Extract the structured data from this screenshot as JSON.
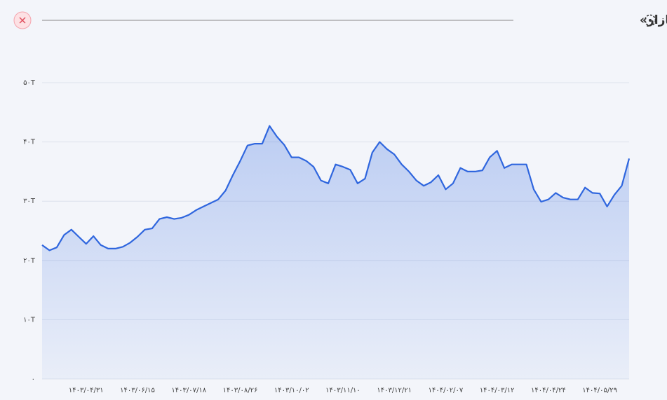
{
  "chart_data": {
    "type": "area",
    "title": "تاریخچه «ارزش بازار»",
    "categories": [
      null,
      null,
      null,
      null,
      null,
      null,
      "۱۴۰۳/۰۴/۳۱",
      null,
      null,
      null,
      null,
      null,
      null,
      "۱۴۰۳/۰۶/۱۵",
      null,
      null,
      null,
      null,
      null,
      null,
      "۱۴۰۳/۰۷/۱۸",
      null,
      null,
      null,
      null,
      null,
      null,
      "۱۴۰۳/۰۸/۲۶",
      null,
      null,
      null,
      null,
      null,
      null,
      "۱۴۰۳/۱۰/۰۲",
      null,
      null,
      null,
      null,
      null,
      null,
      "۱۴۰۳/۱۱/۱۰",
      null,
      null,
      null,
      null,
      null,
      null,
      "۱۴۰۳/۱۲/۲۱",
      null,
      null,
      null,
      null,
      null,
      null,
      "۱۴۰۴/۰۲/۰۷",
      null,
      null,
      null,
      null,
      null,
      null,
      "۱۴۰۴/۰۳/۱۲",
      null,
      null,
      null,
      null,
      null,
      null,
      "۱۴۰۴/۰۴/۲۴",
      null,
      null,
      null,
      null,
      null,
      null,
      "۱۴۰۴/۰۵/۲۹",
      null,
      null,
      null,
      null
    ],
    "values": [
      22.6,
      21.7,
      22.2,
      24.3,
      25.2,
      24.0,
      22.8,
      24.1,
      22.6,
      22.0,
      22.0,
      22.3,
      23.0,
      24.0,
      25.2,
      25.4,
      27.0,
      27.3,
      27.0,
      27.2,
      27.7,
      28.5,
      29.1,
      29.7,
      30.3,
      31.8,
      34.4,
      36.8,
      39.4,
      39.7,
      39.7,
      42.7,
      40.9,
      39.5,
      37.4,
      37.4,
      36.8,
      35.8,
      33.5,
      33.0,
      36.2,
      35.8,
      35.3,
      33.0,
      33.8,
      38.2,
      40.0,
      38.8,
      37.9,
      36.2,
      35.0,
      33.5,
      32.6,
      33.2,
      34.4,
      32.0,
      33.0,
      35.6,
      35.0,
      35.0,
      35.2,
      37.4,
      38.5,
      35.6,
      36.2,
      36.2,
      36.2,
      32.0,
      29.9,
      30.3,
      31.4,
      30.6,
      30.3,
      30.3,
      32.3,
      31.4,
      31.3,
      29.1,
      31.1,
      32.6,
      37.2
    ],
    "color": "#2f66de",
    "ylim": [
      0,
      50
    ],
    "yticks": [
      {
        "value": 0,
        "label": "۰"
      },
      {
        "value": 10,
        "label": "۱۰T"
      },
      {
        "value": 20,
        "label": "۲۰T"
      },
      {
        "value": 30,
        "label": "۳۰T"
      },
      {
        "value": 40,
        "label": "۴۰T"
      },
      {
        "value": 50,
        "label": "۵۰T"
      }
    ],
    "grid": true
  }
}
